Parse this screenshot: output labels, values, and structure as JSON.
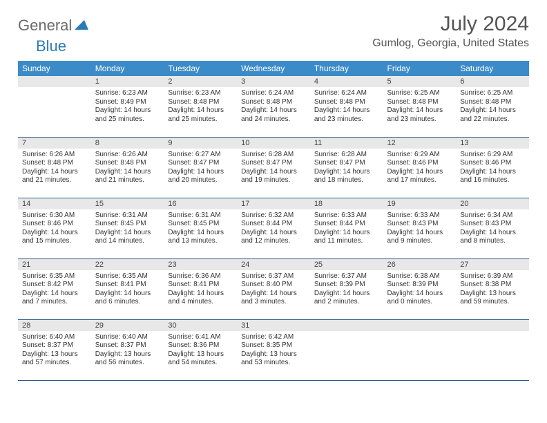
{
  "brand": {
    "part1": "General",
    "part2": "Blue"
  },
  "title": "July 2024",
  "location": "Gumlog, Georgia, United States",
  "colors": {
    "header_bg": "#3b8bc8",
    "header_text": "#ffffff",
    "daynum_bg": "#e8e8e8",
    "row_border": "#2a5a8a",
    "brand_gray": "#6a6a6a",
    "brand_blue": "#2a7ab8",
    "title_color": "#555555",
    "text_color": "#333333"
  },
  "typography": {
    "title_fontsize": 30,
    "location_fontsize": 16,
    "dayheader_fontsize": 12,
    "daynum_fontsize": 11,
    "celltext_fontsize": 10
  },
  "day_headers": [
    "Sunday",
    "Monday",
    "Tuesday",
    "Wednesday",
    "Thursday",
    "Friday",
    "Saturday"
  ],
  "weeks": [
    [
      {
        "num": "",
        "sunrise": "",
        "sunset": "",
        "daylight": ""
      },
      {
        "num": "1",
        "sunrise": "Sunrise: 6:23 AM",
        "sunset": "Sunset: 8:49 PM",
        "daylight": "Daylight: 14 hours and 25 minutes."
      },
      {
        "num": "2",
        "sunrise": "Sunrise: 6:23 AM",
        "sunset": "Sunset: 8:48 PM",
        "daylight": "Daylight: 14 hours and 25 minutes."
      },
      {
        "num": "3",
        "sunrise": "Sunrise: 6:24 AM",
        "sunset": "Sunset: 8:48 PM",
        "daylight": "Daylight: 14 hours and 24 minutes."
      },
      {
        "num": "4",
        "sunrise": "Sunrise: 6:24 AM",
        "sunset": "Sunset: 8:48 PM",
        "daylight": "Daylight: 14 hours and 23 minutes."
      },
      {
        "num": "5",
        "sunrise": "Sunrise: 6:25 AM",
        "sunset": "Sunset: 8:48 PM",
        "daylight": "Daylight: 14 hours and 23 minutes."
      },
      {
        "num": "6",
        "sunrise": "Sunrise: 6:25 AM",
        "sunset": "Sunset: 8:48 PM",
        "daylight": "Daylight: 14 hours and 22 minutes."
      }
    ],
    [
      {
        "num": "7",
        "sunrise": "Sunrise: 6:26 AM",
        "sunset": "Sunset: 8:48 PM",
        "daylight": "Daylight: 14 hours and 21 minutes."
      },
      {
        "num": "8",
        "sunrise": "Sunrise: 6:26 AM",
        "sunset": "Sunset: 8:48 PM",
        "daylight": "Daylight: 14 hours and 21 minutes."
      },
      {
        "num": "9",
        "sunrise": "Sunrise: 6:27 AM",
        "sunset": "Sunset: 8:47 PM",
        "daylight": "Daylight: 14 hours and 20 minutes."
      },
      {
        "num": "10",
        "sunrise": "Sunrise: 6:28 AM",
        "sunset": "Sunset: 8:47 PM",
        "daylight": "Daylight: 14 hours and 19 minutes."
      },
      {
        "num": "11",
        "sunrise": "Sunrise: 6:28 AM",
        "sunset": "Sunset: 8:47 PM",
        "daylight": "Daylight: 14 hours and 18 minutes."
      },
      {
        "num": "12",
        "sunrise": "Sunrise: 6:29 AM",
        "sunset": "Sunset: 8:46 PM",
        "daylight": "Daylight: 14 hours and 17 minutes."
      },
      {
        "num": "13",
        "sunrise": "Sunrise: 6:29 AM",
        "sunset": "Sunset: 8:46 PM",
        "daylight": "Daylight: 14 hours and 16 minutes."
      }
    ],
    [
      {
        "num": "14",
        "sunrise": "Sunrise: 6:30 AM",
        "sunset": "Sunset: 8:46 PM",
        "daylight": "Daylight: 14 hours and 15 minutes."
      },
      {
        "num": "15",
        "sunrise": "Sunrise: 6:31 AM",
        "sunset": "Sunset: 8:45 PM",
        "daylight": "Daylight: 14 hours and 14 minutes."
      },
      {
        "num": "16",
        "sunrise": "Sunrise: 6:31 AM",
        "sunset": "Sunset: 8:45 PM",
        "daylight": "Daylight: 14 hours and 13 minutes."
      },
      {
        "num": "17",
        "sunrise": "Sunrise: 6:32 AM",
        "sunset": "Sunset: 8:44 PM",
        "daylight": "Daylight: 14 hours and 12 minutes."
      },
      {
        "num": "18",
        "sunrise": "Sunrise: 6:33 AM",
        "sunset": "Sunset: 8:44 PM",
        "daylight": "Daylight: 14 hours and 11 minutes."
      },
      {
        "num": "19",
        "sunrise": "Sunrise: 6:33 AM",
        "sunset": "Sunset: 8:43 PM",
        "daylight": "Daylight: 14 hours and 9 minutes."
      },
      {
        "num": "20",
        "sunrise": "Sunrise: 6:34 AM",
        "sunset": "Sunset: 8:43 PM",
        "daylight": "Daylight: 14 hours and 8 minutes."
      }
    ],
    [
      {
        "num": "21",
        "sunrise": "Sunrise: 6:35 AM",
        "sunset": "Sunset: 8:42 PM",
        "daylight": "Daylight: 14 hours and 7 minutes."
      },
      {
        "num": "22",
        "sunrise": "Sunrise: 6:35 AM",
        "sunset": "Sunset: 8:41 PM",
        "daylight": "Daylight: 14 hours and 6 minutes."
      },
      {
        "num": "23",
        "sunrise": "Sunrise: 6:36 AM",
        "sunset": "Sunset: 8:41 PM",
        "daylight": "Daylight: 14 hours and 4 minutes."
      },
      {
        "num": "24",
        "sunrise": "Sunrise: 6:37 AM",
        "sunset": "Sunset: 8:40 PM",
        "daylight": "Daylight: 14 hours and 3 minutes."
      },
      {
        "num": "25",
        "sunrise": "Sunrise: 6:37 AM",
        "sunset": "Sunset: 8:39 PM",
        "daylight": "Daylight: 14 hours and 2 minutes."
      },
      {
        "num": "26",
        "sunrise": "Sunrise: 6:38 AM",
        "sunset": "Sunset: 8:39 PM",
        "daylight": "Daylight: 14 hours and 0 minutes."
      },
      {
        "num": "27",
        "sunrise": "Sunrise: 6:39 AM",
        "sunset": "Sunset: 8:38 PM",
        "daylight": "Daylight: 13 hours and 59 minutes."
      }
    ],
    [
      {
        "num": "28",
        "sunrise": "Sunrise: 6:40 AM",
        "sunset": "Sunset: 8:37 PM",
        "daylight": "Daylight: 13 hours and 57 minutes."
      },
      {
        "num": "29",
        "sunrise": "Sunrise: 6:40 AM",
        "sunset": "Sunset: 8:37 PM",
        "daylight": "Daylight: 13 hours and 56 minutes."
      },
      {
        "num": "30",
        "sunrise": "Sunrise: 6:41 AM",
        "sunset": "Sunset: 8:36 PM",
        "daylight": "Daylight: 13 hours and 54 minutes."
      },
      {
        "num": "31",
        "sunrise": "Sunrise: 6:42 AM",
        "sunset": "Sunset: 8:35 PM",
        "daylight": "Daylight: 13 hours and 53 minutes."
      },
      {
        "num": "",
        "sunrise": "",
        "sunset": "",
        "daylight": ""
      },
      {
        "num": "",
        "sunrise": "",
        "sunset": "",
        "daylight": ""
      },
      {
        "num": "",
        "sunrise": "",
        "sunset": "",
        "daylight": ""
      }
    ]
  ]
}
